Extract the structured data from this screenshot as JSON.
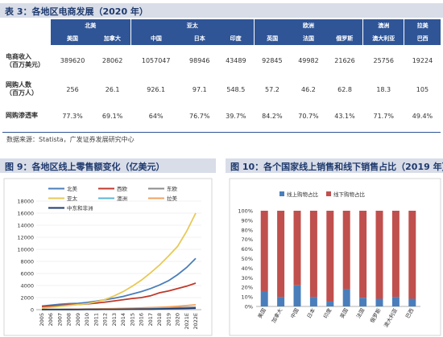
{
  "table": {
    "title": "表 3：各地区电商发展（2020 年）",
    "regions": [
      "北美",
      "亚太",
      "欧洲",
      "澳洲",
      "拉美"
    ],
    "countries": [
      "美国",
      "加拿大",
      "中国",
      "日本",
      "印度",
      "英国",
      "法国",
      "俄罗斯",
      "澳大利亚",
      "巴西"
    ],
    "rows": [
      {
        "label_line1": "电商收入",
        "label_line2": "（百万美元）",
        "values": [
          "389620",
          "28062",
          "1057047",
          "98946",
          "43489",
          "92845",
          "49982",
          "21626",
          "25756",
          "19224"
        ]
      },
      {
        "label_line1": "网购人数",
        "label_line2": "（百万人）",
        "values": [
          "256",
          "26.1",
          "926.1",
          "97.1",
          "548.5",
          "57.2",
          "46.2",
          "62.8",
          "18.3",
          "105"
        ]
      },
      {
        "label_line1": "网购渗透率",
        "label_line2": "",
        "values": [
          "77.3%",
          "69.1%",
          "64%",
          "76.7%",
          "39.7%",
          "84.2%",
          "70.7%",
          "43.1%",
          "71.7%",
          "49.4%"
        ]
      }
    ],
    "source": "数据来源：Statista，广发证券发展研究中心"
  },
  "chart_data": [
    {
      "type": "line",
      "title": "图 9：各地区线上零售额变化（亿美元）",
      "categories": [
        "2005",
        "2006",
        "2007",
        "2008",
        "2009",
        "2010",
        "2011",
        "2012",
        "2013",
        "2014",
        "2015",
        "2016",
        "2017",
        "2018",
        "2019",
        "2020",
        "2021E",
        "2022E"
      ],
      "ylim": [
        0,
        18000
      ],
      "yticks": [
        0,
        2000,
        4000,
        6000,
        8000,
        10000,
        12000,
        14000,
        16000,
        18000
      ],
      "legend": "top",
      "series": [
        {
          "name": "北美",
          "color": "#4a7ebb",
          "values": [
            600,
            750,
            900,
            1000,
            1050,
            1200,
            1400,
            1650,
            1900,
            2200,
            2600,
            3000,
            3500,
            4100,
            4800,
            5800,
            7000,
            8500
          ]
        },
        {
          "name": "西欧",
          "color": "#c0392b",
          "values": [
            500,
            600,
            700,
            800,
            850,
            950,
            1100,
            1250,
            1450,
            1650,
            1850,
            2000,
            2300,
            2800,
            3100,
            3500,
            3900,
            4400
          ]
        },
        {
          "name": "东欧",
          "color": "#8c8c8c",
          "values": [
            50,
            60,
            70,
            80,
            80,
            90,
            100,
            120,
            140,
            160,
            180,
            200,
            230,
            260,
            290,
            330,
            370,
            420
          ]
        },
        {
          "name": "亚太",
          "color": "#e8c955",
          "values": [
            300,
            400,
            550,
            700,
            850,
            1000,
            1300,
            1700,
            2300,
            3000,
            3900,
            4900,
            6100,
            7400,
            8900,
            10500,
            13000,
            16000
          ]
        },
        {
          "name": "澳洲",
          "color": "#5bb7d5",
          "values": [
            30,
            35,
            40,
            45,
            50,
            55,
            60,
            70,
            80,
            90,
            100,
            110,
            130,
            150,
            170,
            200,
            230,
            270
          ]
        },
        {
          "name": "拉美",
          "color": "#f0a35e",
          "values": [
            40,
            50,
            60,
            70,
            80,
            100,
            120,
            150,
            180,
            210,
            250,
            290,
            340,
            400,
            470,
            560,
            680,
            820
          ]
        },
        {
          "name": "中东和非洲",
          "color": "#1f3a6e",
          "values": [
            10,
            15,
            20,
            25,
            30,
            35,
            40,
            50,
            60,
            70,
            80,
            90,
            100,
            120,
            140,
            170,
            200,
            240
          ]
        }
      ]
    },
    {
      "type": "bar",
      "stacked": true,
      "title": "图 10：各个国家线上销售和线下销售占比（2019 年）",
      "categories": [
        "美国",
        "加拿大",
        "中国",
        "日本",
        "印度",
        "英国",
        "法国",
        "俄罗斯",
        "澳大利亚",
        "巴西"
      ],
      "ylim": [
        0,
        100
      ],
      "yticks": [
        "0%",
        "10%",
        "20%",
        "30%",
        "40%",
        "50%",
        "60%",
        "70%",
        "80%",
        "90%",
        "100%"
      ],
      "legend": "top-left",
      "series": [
        {
          "name": "线上购物占比",
          "color": "#4a7ebb",
          "values": [
            16,
            10,
            22,
            10,
            5,
            18,
            9,
            8,
            10,
            8
          ]
        },
        {
          "name": "线下购物占比",
          "color": "#c0504d",
          "values": [
            84,
            90,
            78,
            90,
            95,
            82,
            91,
            92,
            90,
            92
          ]
        }
      ]
    }
  ]
}
